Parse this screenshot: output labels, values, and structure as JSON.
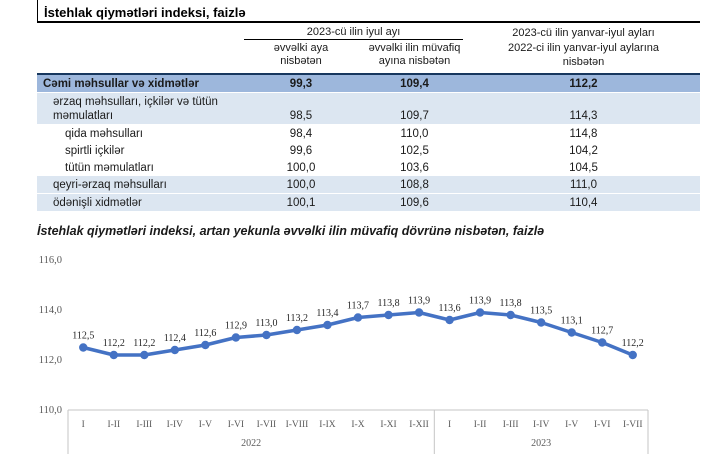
{
  "table": {
    "title": "İstehlak qiymətləri indeksi, faizlə",
    "column_groups": {
      "july": {
        "label": "2023-cü ilin iyul ayı"
      },
      "jan_july": {
        "lines": [
          "2023-cü ilin yanvar-iyul ayları",
          "2022-ci ilin yanvar-iyul aylarına",
          "nisbətən"
        ]
      }
    },
    "column_headers": {
      "prev_month": "əvvəlki aya nisbətən",
      "prev_year_month": "əvvəlki ilin müvafiq ayına nisbətən"
    },
    "rows": [
      {
        "label": "Cəmi məhsullar və xidmətlər",
        "values": [
          "99,3",
          "109,4",
          "112,2"
        ],
        "style": "total",
        "indent": 0
      },
      {
        "label": "ərzaq məhsulları, içkilər və tütün məmulatları",
        "values": [
          "98,5",
          "109,7",
          "114,3"
        ],
        "style": "shaded",
        "indent": 1
      },
      {
        "label": "qida məhsulları",
        "values": [
          "98,4",
          "110,0",
          "114,8"
        ],
        "style": "plain",
        "indent": 2
      },
      {
        "label": "spirtli içkilər",
        "values": [
          "99,6",
          "102,5",
          "104,2"
        ],
        "style": "plain",
        "indent": 2
      },
      {
        "label": "tütün məmulatları",
        "values": [
          "100,0",
          "103,6",
          "104,5"
        ],
        "style": "plain",
        "indent": 2
      },
      {
        "label": "qeyri-ərzaq məhsulları",
        "values": [
          "100,0",
          "108,8",
          "111,0"
        ],
        "style": "shaded",
        "indent": 1
      },
      {
        "label": "ödənişli xidmətlər",
        "values": [
          "100,1",
          "109,6",
          "110,4"
        ],
        "style": "shaded",
        "indent": 1
      }
    ],
    "colors": {
      "total_row_bg": "#9DB7DC",
      "shaded_row_bg": "#DCE6F1",
      "header_border_dark": "#17375E"
    }
  },
  "chart": {
    "title": "İstehlak qiymətləri indeksi, artan yekunla əvvəlki ilin müvafiq dövrünə nisbətən, faizlə"
  },
  "chart_data": {
    "type": "line",
    "title": "İstehlak qiymətləri indeksi, artan yekunla əvvəlki ilin müvafiq dövrünə nisbətən, faizlə",
    "categories": [
      "I",
      "I-II",
      "I-III",
      "I-IV",
      "I-V",
      "I-VI",
      "I-VII",
      "I-VIII",
      "I-IX",
      "I-X",
      "I-XI",
      "I-XII",
      "I",
      "I-II",
      "I-III",
      "I-IV",
      "I-V",
      "I-VI",
      "I-VII"
    ],
    "values": [
      112.5,
      112.2,
      112.2,
      112.4,
      112.6,
      112.9,
      113.0,
      113.2,
      113.4,
      113.7,
      113.8,
      113.9,
      113.6,
      113.9,
      113.8,
      113.5,
      113.1,
      112.7,
      112.2
    ],
    "point_labels": [
      "112,5",
      "112,2",
      "112,2",
      "112,4",
      "112,6",
      "112,9",
      "113,0",
      "113,2",
      "113,4",
      "113,7",
      "113,8",
      "113,9",
      "113,6",
      "113,9",
      "113,8",
      "113,5",
      "113,1",
      "112,7",
      "112,2"
    ],
    "year_groups": [
      {
        "label": "2022",
        "count": 12
      },
      {
        "label": "2023",
        "count": 7
      }
    ],
    "yticks": [
      {
        "label": "110,0",
        "value": 110
      },
      {
        "label": "112,0",
        "value": 112
      },
      {
        "label": "114,0",
        "value": 114
      },
      {
        "label": "116,0",
        "value": 116
      }
    ],
    "ylim": [
      110,
      116
    ],
    "grid": false,
    "legend": "none",
    "data_labels": true,
    "line_color": "#4472C4",
    "marker_color": "#4472C4",
    "data_label_color": "#262626",
    "axis_text_color": "#595959",
    "axis_line_color": "#C6C6C6"
  }
}
